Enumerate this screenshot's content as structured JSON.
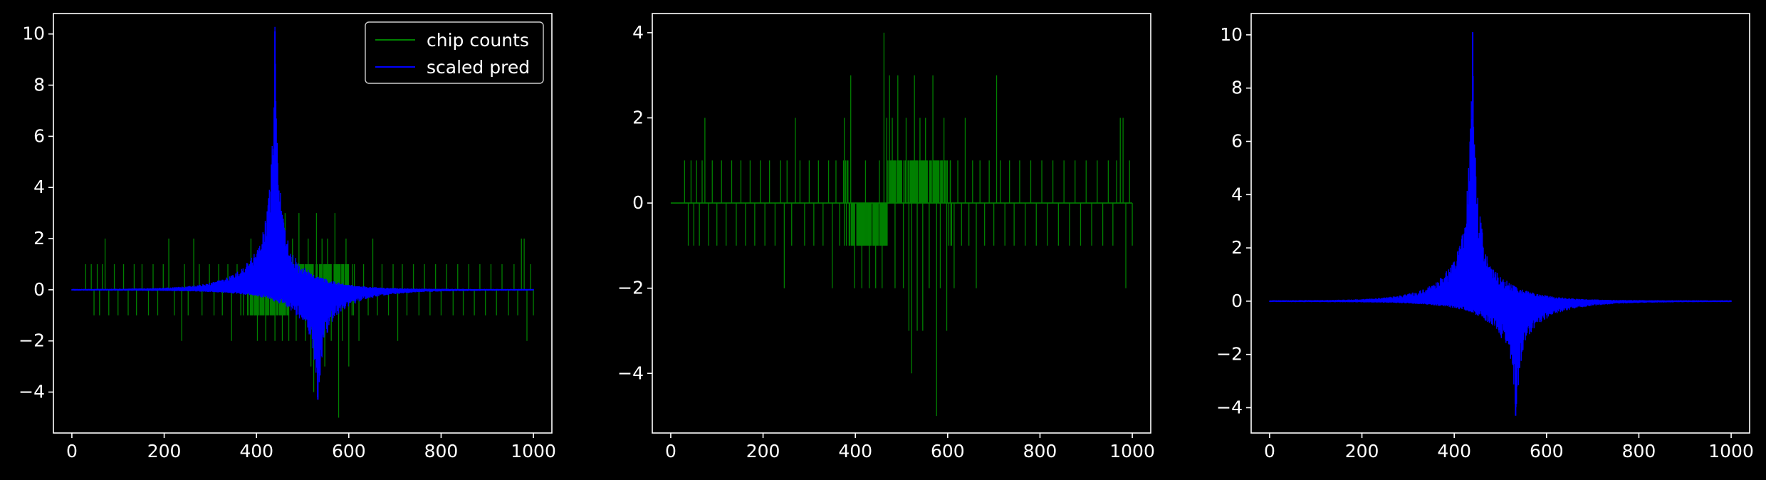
{
  "figure": {
    "background": "#000000",
    "axis_color": "#ffffff",
    "text_color": "#ffffff"
  },
  "chart_data": [
    {
      "type": "line",
      "title": "",
      "xlabel": "",
      "ylabel": "",
      "xlim": [
        -40,
        1040
      ],
      "ylim": [
        -5.6,
        10.8
      ],
      "xticks": [
        0,
        200,
        400,
        600,
        800,
        1000
      ],
      "yticks": [
        -4,
        -2,
        0,
        2,
        4,
        6,
        8,
        10
      ],
      "grid": false,
      "legend": {
        "placement": "top-right",
        "entries": [
          "chip counts",
          "scaled pred"
        ]
      },
      "series": [
        {
          "name": "chip counts",
          "color": "#008000",
          "kind": "counts",
          "x_range": [
            0,
            1000
          ],
          "points": [
            [
              30,
              1
            ],
            [
              42,
              1
            ],
            [
              48,
              -1
            ],
            [
              55,
              1
            ],
            [
              60,
              -1
            ],
            [
              66,
              1
            ],
            [
              72,
              2
            ],
            [
              80,
              -1
            ],
            [
              92,
              1
            ],
            [
              100,
              -1
            ],
            [
              112,
              1
            ],
            [
              122,
              -1
            ],
            [
              135,
              1
            ],
            [
              140,
              -1
            ],
            [
              152,
              1
            ],
            [
              166,
              -1
            ],
            [
              176,
              1
            ],
            [
              186,
              -1
            ],
            [
              198,
              1
            ],
            [
              210,
              2
            ],
            [
              222,
              -1
            ],
            [
              238,
              -2
            ],
            [
              244,
              1
            ],
            [
              252,
              -1
            ],
            [
              264,
              2
            ],
            [
              276,
              1
            ],
            [
              282,
              -1
            ],
            [
              298,
              1
            ],
            [
              308,
              -1
            ],
            [
              318,
              1
            ],
            [
              326,
              -1
            ],
            [
              338,
              1
            ],
            [
              346,
              -2
            ],
            [
              358,
              1
            ],
            [
              366,
              -1
            ],
            [
              380,
              1
            ],
            [
              388,
              2
            ],
            [
              396,
              -1
            ],
            [
              402,
              -2
            ],
            [
              414,
              1
            ],
            [
              420,
              -2
            ],
            [
              432,
              1
            ],
            [
              440,
              -2
            ],
            [
              448,
              2
            ],
            [
              456,
              -2
            ],
            [
              462,
              3
            ],
            [
              470,
              -2
            ],
            [
              478,
              2
            ],
            [
              486,
              -2
            ],
            [
              492,
              3
            ],
            [
              500,
              1
            ],
            [
              506,
              -2
            ],
            [
              512,
              2
            ],
            [
              518,
              -3
            ],
            [
              524,
              -4
            ],
            [
              530,
              3
            ],
            [
              536,
              -3
            ],
            [
              542,
              2
            ],
            [
              548,
              -3
            ],
            [
              554,
              2
            ],
            [
              562,
              -2
            ],
            [
              570,
              3
            ],
            [
              578,
              -5
            ],
            [
              586,
              -2
            ],
            [
              594,
              2
            ],
            [
              600,
              -3
            ],
            [
              612,
              1
            ],
            [
              622,
              -2
            ],
            [
              632,
              1
            ],
            [
              642,
              -1
            ],
            [
              652,
              2
            ],
            [
              662,
              -1
            ],
            [
              672,
              1
            ],
            [
              686,
              -1
            ],
            [
              696,
              1
            ],
            [
              706,
              -2
            ],
            [
              716,
              1
            ],
            [
              726,
              -1
            ],
            [
              740,
              1
            ],
            [
              752,
              -1
            ],
            [
              764,
              1
            ],
            [
              776,
              -1
            ],
            [
              788,
              1
            ],
            [
              800,
              -1
            ],
            [
              812,
              1
            ],
            [
              826,
              -1
            ],
            [
              836,
              1
            ],
            [
              848,
              -1
            ],
            [
              860,
              1
            ],
            [
              872,
              -1
            ],
            [
              884,
              1
            ],
            [
              896,
              -1
            ],
            [
              908,
              1
            ],
            [
              920,
              -1
            ],
            [
              932,
              1
            ],
            [
              946,
              -1
            ],
            [
              958,
              1
            ],
            [
              966,
              -1
            ],
            [
              974,
              2
            ],
            [
              980,
              2
            ],
            [
              986,
              -2
            ],
            [
              994,
              1
            ],
            [
              1000,
              -1
            ]
          ]
        },
        {
          "name": "scaled pred",
          "color": "#0000ff",
          "kind": "pred",
          "x_range": [
            0,
            1000
          ],
          "peak_pos": [
            440,
            10.1
          ],
          "peak_neg": [
            533,
            -4.3
          ]
        }
      ]
    },
    {
      "type": "line",
      "title": "",
      "xlabel": "",
      "ylabel": "",
      "xlim": [
        -40,
        1040
      ],
      "ylim": [
        -5.4,
        4.45
      ],
      "xticks": [
        0,
        200,
        400,
        600,
        800,
        1000
      ],
      "yticks": [
        -4,
        -2,
        0,
        2,
        4
      ],
      "grid": false,
      "series": [
        {
          "color": "#008000",
          "kind": "counts",
          "x_range": [
            0,
            1000
          ],
          "points": [
            [
              30,
              1
            ],
            [
              38,
              -1
            ],
            [
              44,
              1
            ],
            [
              50,
              -1
            ],
            [
              56,
              1
            ],
            [
              62,
              -1
            ],
            [
              68,
              1
            ],
            [
              74,
              2
            ],
            [
              82,
              -1
            ],
            [
              90,
              1
            ],
            [
              100,
              -1
            ],
            [
              110,
              1
            ],
            [
              120,
              -1
            ],
            [
              132,
              1
            ],
            [
              142,
              -1
            ],
            [
              152,
              1
            ],
            [
              162,
              -1
            ],
            [
              172,
              1
            ],
            [
              182,
              -1
            ],
            [
              194,
              1
            ],
            [
              204,
              -1
            ],
            [
              214,
              1
            ],
            [
              226,
              -1
            ],
            [
              238,
              1
            ],
            [
              246,
              -2
            ],
            [
              252,
              1
            ],
            [
              262,
              -1
            ],
            [
              270,
              2
            ],
            [
              280,
              1
            ],
            [
              290,
              -1
            ],
            [
              300,
              1
            ],
            [
              310,
              -1
            ],
            [
              320,
              1
            ],
            [
              330,
              -1
            ],
            [
              342,
              1
            ],
            [
              350,
              -2
            ],
            [
              358,
              1
            ],
            [
              366,
              -1
            ],
            [
              376,
              2
            ],
            [
              384,
              1
            ],
            [
              390,
              3
            ],
            [
              398,
              -2
            ],
            [
              406,
              -1
            ],
            [
              414,
              -2
            ],
            [
              422,
              1
            ],
            [
              430,
              -2
            ],
            [
              438,
              -1
            ],
            [
              444,
              -2
            ],
            [
              452,
              1
            ],
            [
              458,
              -2
            ],
            [
              462,
              4
            ],
            [
              468,
              2
            ],
            [
              474,
              3
            ],
            [
              480,
              2
            ],
            [
              486,
              -2
            ],
            [
              492,
              3
            ],
            [
              498,
              1
            ],
            [
              504,
              -2
            ],
            [
              510,
              2
            ],
            [
              516,
              -3
            ],
            [
              522,
              -4
            ],
            [
              528,
              3
            ],
            [
              534,
              -3
            ],
            [
              540,
              2
            ],
            [
              546,
              -3
            ],
            [
              552,
              2
            ],
            [
              560,
              -2
            ],
            [
              568,
              3
            ],
            [
              576,
              -5
            ],
            [
              584,
              -2
            ],
            [
              592,
              2
            ],
            [
              598,
              -3
            ],
            [
              606,
              1
            ],
            [
              614,
              -2
            ],
            [
              622,
              1
            ],
            [
              630,
              -1
            ],
            [
              638,
              2
            ],
            [
              646,
              -1
            ],
            [
              654,
              1
            ],
            [
              662,
              -2
            ],
            [
              670,
              1
            ],
            [
              680,
              -1
            ],
            [
              690,
              1
            ],
            [
              700,
              -1
            ],
            [
              706,
              3
            ],
            [
              714,
              1
            ],
            [
              724,
              -1
            ],
            [
              734,
              1
            ],
            [
              744,
              -1
            ],
            [
              756,
              1
            ],
            [
              768,
              -1
            ],
            [
              780,
              1
            ],
            [
              792,
              -1
            ],
            [
              804,
              1
            ],
            [
              816,
              -1
            ],
            [
              828,
              1
            ],
            [
              840,
              -1
            ],
            [
              852,
              1
            ],
            [
              864,
              -1
            ],
            [
              876,
              1
            ],
            [
              888,
              -1
            ],
            [
              900,
              1
            ],
            [
              912,
              -1
            ],
            [
              924,
              1
            ],
            [
              936,
              -1
            ],
            [
              948,
              1
            ],
            [
              958,
              -1
            ],
            [
              966,
              1
            ],
            [
              974,
              2
            ],
            [
              980,
              2
            ],
            [
              986,
              -2
            ],
            [
              994,
              1
            ],
            [
              1000,
              -1
            ]
          ]
        }
      ]
    },
    {
      "type": "line",
      "title": "",
      "xlabel": "",
      "ylabel": "",
      "xlim": [
        -40,
        1040
      ],
      "ylim": [
        -4.95,
        10.8
      ],
      "xticks": [
        0,
        200,
        400,
        600,
        800,
        1000
      ],
      "yticks": [
        -4,
        -2,
        0,
        2,
        4,
        6,
        8,
        10
      ],
      "grid": false,
      "series": [
        {
          "color": "#0000ff",
          "kind": "pred",
          "x_range": [
            0,
            1000
          ],
          "peak_pos": [
            440,
            10.1
          ],
          "peak_neg": [
            533,
            -4.3
          ]
        }
      ]
    }
  ]
}
